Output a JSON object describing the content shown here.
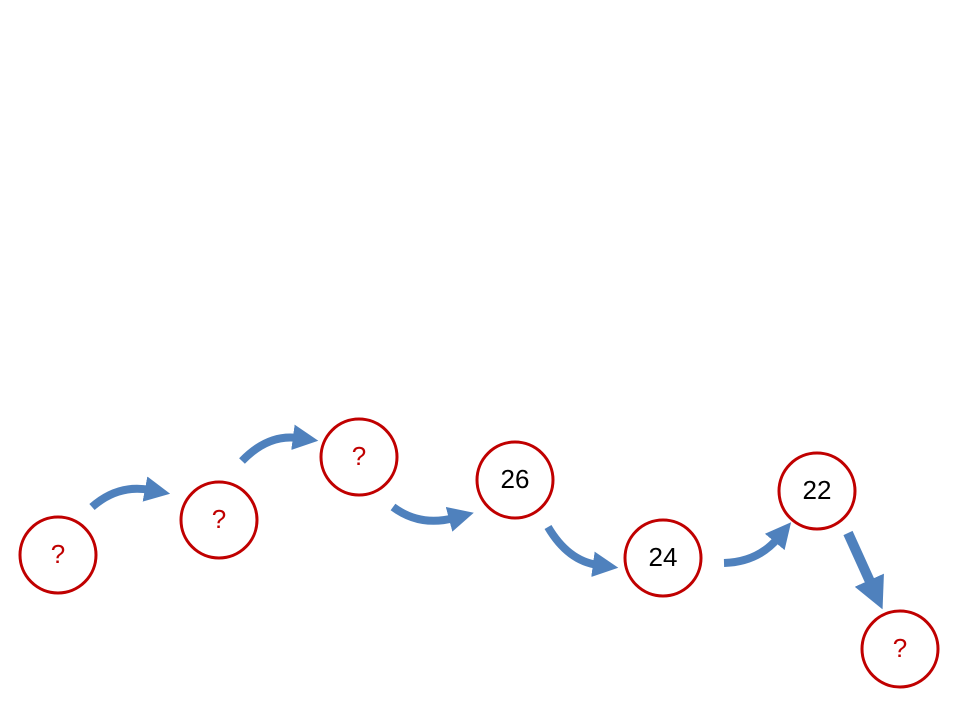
{
  "diagram": {
    "node_stroke_color": "#c00000",
    "arrow_color": "#4f81bd",
    "unknown_text_color": "#c00000",
    "known_text_color": "#000000",
    "nodes": [
      {
        "label": "?",
        "unknown": true
      },
      {
        "label": "?",
        "unknown": true
      },
      {
        "label": "?",
        "unknown": true
      },
      {
        "label": "26",
        "unknown": false
      },
      {
        "label": "24",
        "unknown": false
      },
      {
        "label": "22",
        "unknown": false
      },
      {
        "label": "?",
        "unknown": true
      }
    ]
  }
}
